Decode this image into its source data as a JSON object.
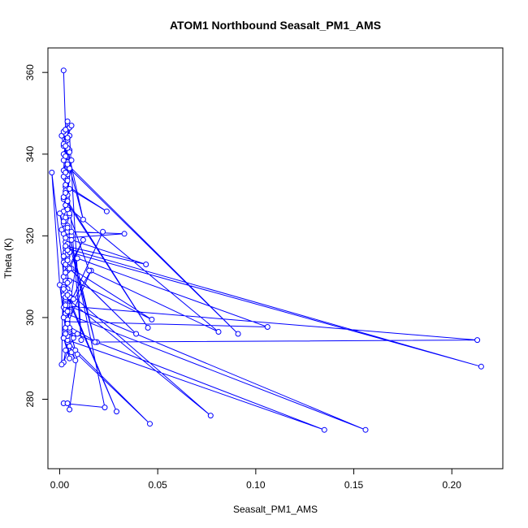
{
  "chart_data": {
    "type": "scatter",
    "title": "ATOM1 Northbound Seasalt_PM1_AMS",
    "xlabel": "Seasalt_PM1_AMS",
    "ylabel": "Theta (K)",
    "xlim": [
      -0.006,
      0.226
    ],
    "ylim": [
      263,
      366
    ],
    "xticks": [
      0.0,
      0.05,
      0.1,
      0.15,
      0.2
    ],
    "xtick_labels": [
      "0.00",
      "0.05",
      "0.10",
      "0.15",
      "0.20"
    ],
    "yticks": [
      280,
      300,
      320,
      340,
      360
    ],
    "ytick_labels": [
      "280",
      "300",
      "320",
      "340",
      "360"
    ],
    "grid": false,
    "series_color": "#0000ff",
    "marker": "open-circle",
    "connected": true,
    "x": [
      0.002,
      0.003,
      0.001,
      0.002,
      0.004,
      0.003,
      0.005,
      0.002,
      0.004,
      0.003,
      0.002,
      0.005,
      0.004,
      0.003,
      0.006,
      0.004,
      0.003,
      0.002,
      0.003,
      0.004,
      0.005,
      0.003,
      0.002,
      0.004,
      0.006,
      0.003,
      0.004,
      0.0,
      0.002,
      0.003,
      0.005,
      0.004,
      0.003,
      0.006,
      0.047,
      0.003,
      0.004,
      0.002,
      0.003,
      0.005,
      0.004,
      0.005,
      0.022,
      0.004,
      0.003,
      0.002,
      0.003,
      0.002,
      0.004,
      0.003,
      0.002,
      0.003,
      -0.004,
      0.0,
      0.003,
      0.009,
      0.106,
      0.004,
      0.005,
      0.003,
      0.007,
      0.009,
      0.003,
      0.004,
      0.005,
      0.002,
      0.005,
      0.135,
      0.004,
      0.002,
      0.005,
      0.004,
      0.006,
      0.008,
      0.003,
      0.005,
      0.004,
      0.019,
      0.213,
      0.004,
      0.003,
      0.008,
      0.005,
      0.004,
      0.003,
      0.156,
      0.004,
      0.003,
      0.005,
      0.077,
      0.003,
      0.002,
      0.005,
      0.003,
      0.004,
      0.039,
      0.002,
      0.004,
      0.005,
      0.215,
      0.003,
      0.004,
      0.006,
      0.002,
      0.001,
      0.004,
      0.023,
      0.002,
      0.004,
      0.005,
      0.009,
      0.046,
      0.002,
      0.003,
      0.004,
      0.016,
      0.002,
      0.004,
      0.003,
      0.007,
      0.004,
      0.029,
      0.002,
      0.004,
      0.002,
      0.003,
      0.012,
      0.005,
      0.003,
      0.004,
      0.002,
      0.004,
      0.003,
      0.044,
      0.003,
      0.033,
      0.006,
      0.004,
      0.018,
      0.002,
      0.003,
      0.005,
      0.004,
      0.015,
      0.081,
      0.003,
      0.004,
      0.045,
      0.002,
      0.003,
      0.005,
      0.024,
      0.003,
      0.004,
      0.002,
      0.003,
      0.005,
      0.091,
      0.004,
      0.002,
      0.003,
      0.005,
      0.004,
      0.012,
      0.002,
      0.004,
      0.005,
      0.011,
      0.002,
      0.003,
      0.006,
      0.004,
      0.003,
      0.001
    ],
    "y": [
      360.5,
      346.0,
      344.5,
      342.0,
      348.0,
      345.0,
      346.5,
      340.0,
      338.0,
      343.0,
      336.0,
      341.0,
      335.0,
      332.0,
      338.5,
      330.0,
      334.0,
      329.0,
      331.0,
      327.0,
      325.0,
      322.0,
      326.0,
      321.0,
      320.0,
      318.5,
      317.0,
      325.5,
      323.0,
      316.0,
      319.0,
      315.0,
      313.0,
      312.0,
      299.5,
      310.0,
      311.5,
      306.0,
      309.0,
      305.0,
      307.0,
      303.0,
      321.0,
      302.0,
      301.0,
      305.5,
      300.0,
      302.5,
      303.5,
      304.0,
      308.0,
      306.5,
      335.5,
      308.0,
      297.0,
      314.5,
      297.7,
      299.0,
      301.5,
      302.0,
      295.0,
      296.0,
      292.0,
      294.0,
      290.0,
      295.0,
      296.5,
      272.5,
      294.5,
      289.0,
      293.0,
      295.5,
      291.5,
      289.5,
      296.0,
      297.0,
      298.0,
      294.0,
      294.5,
      302.8,
      300.5,
      292.0,
      297.5,
      299.5,
      301.0,
      272.5,
      303.0,
      304.5,
      306.0,
      276.0,
      305.0,
      307.5,
      309.0,
      311.0,
      312.5,
      296.0,
      313.5,
      315.5,
      316.0,
      288.0,
      317.0,
      318.0,
      319.0,
      320.5,
      321.5,
      322.5,
      278.0,
      279.0,
      279.0,
      277.5,
      291.0,
      274.0,
      295.0,
      297.5,
      298.5,
      311.5,
      300.0,
      301.5,
      303.0,
      304.5,
      305.5,
      277.0,
      307.0,
      308.5,
      310.0,
      311.0,
      319.0,
      312.0,
      313.0,
      314.0,
      315.0,
      316.5,
      317.5,
      313.0,
      319.5,
      320.5,
      321.0,
      322.0,
      294.0,
      323.5,
      324.5,
      325.5,
      326.5,
      311.5,
      296.5,
      327.5,
      328.5,
      297.5,
      329.5,
      330.5,
      331.5,
      326.0,
      332.5,
      333.5,
      334.5,
      335.5,
      336.5,
      296.0,
      337.5,
      338.5,
      339.5,
      340.5,
      341.5,
      324.0,
      342.5,
      343.5,
      344.5,
      294.5,
      345.5,
      346.0,
      347.0,
      344.0,
      342.0,
      288.5
    ]
  }
}
